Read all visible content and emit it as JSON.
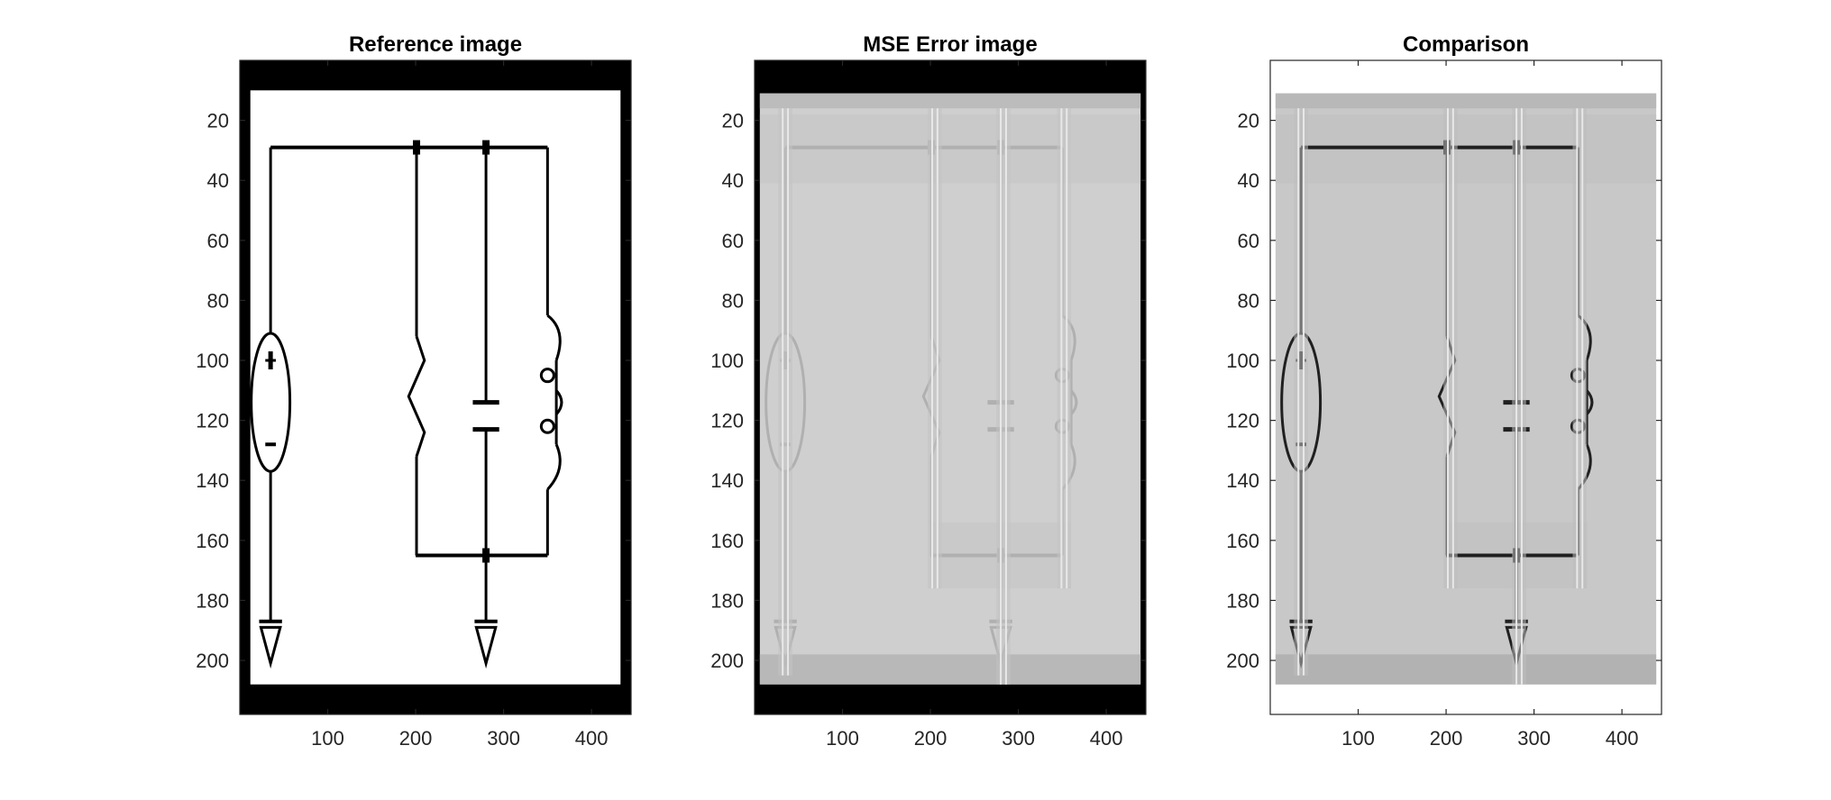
{
  "figure": {
    "panels": [
      {
        "title": "Reference image",
        "kind": "reference"
      },
      {
        "title": "MSE Error image",
        "kind": "error"
      },
      {
        "title": "Comparison",
        "kind": "comparison"
      }
    ]
  },
  "chart_data": [
    {
      "type": "heatmap",
      "title": "Reference image",
      "xlabel": "",
      "ylabel": "",
      "xlim": [
        0,
        445
      ],
      "ylim": [
        218,
        0
      ],
      "x_ticks": [
        100,
        200,
        300,
        400
      ],
      "y_ticks": [
        20,
        40,
        60,
        80,
        100,
        120,
        140,
        160,
        180,
        200
      ],
      "colormap": "gray",
      "grid": false
    },
    {
      "type": "heatmap",
      "title": "MSE Error image",
      "xlabel": "",
      "ylabel": "",
      "xlim": [
        0,
        445
      ],
      "ylim": [
        218,
        0
      ],
      "x_ticks": [
        100,
        200,
        300,
        400
      ],
      "y_ticks": [
        20,
        40,
        60,
        80,
        100,
        120,
        140,
        160,
        180,
        200
      ],
      "colormap": "gray",
      "grid": false
    },
    {
      "type": "heatmap",
      "title": "Comparison",
      "xlabel": "",
      "ylabel": "",
      "xlim": [
        0,
        445
      ],
      "ylim": [
        218,
        0
      ],
      "x_ticks": [
        100,
        200,
        300,
        400
      ],
      "y_ticks": [
        20,
        40,
        60,
        80,
        100,
        120,
        140,
        160,
        180,
        200
      ],
      "colormap": "gray",
      "grid": false
    }
  ],
  "colors": {
    "ink": "#000000",
    "paper": "#ffffff",
    "error_bg": "#cfcfcf",
    "error_line": "#b0b0b0",
    "error_band": "#c4c4c4",
    "comparison_bg": "#c8c8c8",
    "comparison_ink": "#202020",
    "axis": "#262626"
  }
}
